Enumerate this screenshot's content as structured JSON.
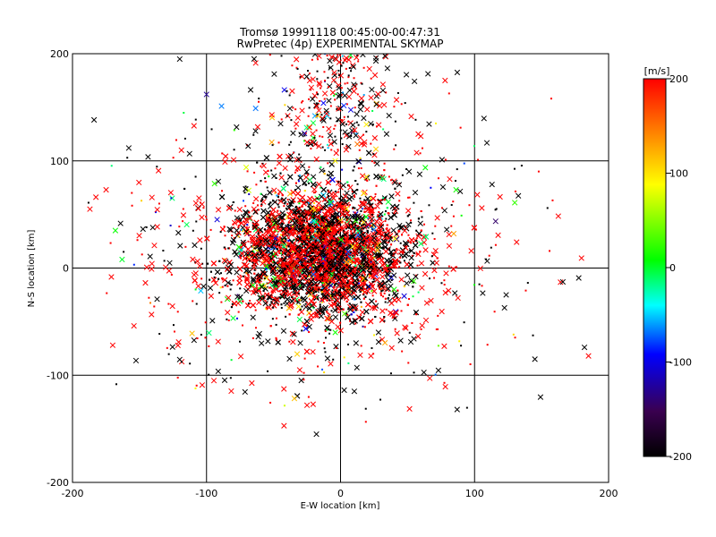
{
  "chart_data": {
    "type": "scatter",
    "title": "Tromsø 19991118 00:45:00-00:47:31",
    "subtitle": "RwPretec (4p) EXPERIMENTAL SKYMAP",
    "xlabel": "E-W location [km]",
    "ylabel": "N-S location [km]",
    "xlim": [
      -200,
      200
    ],
    "ylim": [
      -200,
      200
    ],
    "xticks": [
      "-200",
      "-100",
      "0",
      "100",
      "200"
    ],
    "yticks": [
      "-200",
      "-100",
      "0",
      "100",
      "200"
    ],
    "grid": true,
    "markers": [
      "x",
      "."
    ],
    "cloud": {
      "center": [
        -15,
        15
      ],
      "spread": [
        30,
        28
      ],
      "extent_x": [
        -190,
        185
      ],
      "extent_y": [
        -160,
        200
      ]
    },
    "colorbar": {
      "label": "[m/s]",
      "range": [
        -200,
        200
      ],
      "ticks": [
        "200",
        "100",
        "0",
        "-100",
        "-200"
      ],
      "colormap": [
        "#000000",
        "#3a0050",
        "#0000ff",
        "#00ffff",
        "#00ff00",
        "#ffff00",
        "#ff8000",
        "#ff0000"
      ]
    },
    "highlighted_points": [
      {
        "x": -158,
        "y": 112,
        "v": -200
      },
      {
        "x": -120,
        "y": 195,
        "v": -200
      },
      {
        "x": -100,
        "y": 162,
        "v": -120
      },
      {
        "x": -168,
        "y": 35,
        "v": 30
      },
      {
        "x": -163,
        "y": 8,
        "v": 20
      },
      {
        "x": -170,
        "y": -72,
        "v": 200
      },
      {
        "x": -187,
        "y": 55,
        "v": 200
      },
      {
        "x": 113,
        "y": 78,
        "v": -200
      },
      {
        "x": 130,
        "y": 61,
        "v": 40
      },
      {
        "x": 182,
        "y": -74,
        "v": -200
      },
      {
        "x": 185,
        "y": -82,
        "v": 200
      },
      {
        "x": 145,
        "y": -85,
        "v": -200
      },
      {
        "x": 87,
        "y": -132,
        "v": -200
      },
      {
        "x": -25,
        "y": -128,
        "v": 200
      },
      {
        "x": -18,
        "y": -155,
        "v": -200
      },
      {
        "x": 10,
        "y": 165,
        "v": 200
      },
      {
        "x": 78,
        "y": 175,
        "v": 200
      },
      {
        "x": -4,
        "y": 100,
        "v": 90
      },
      {
        "x": 40,
        "y": -20,
        "v": 30
      },
      {
        "x": 58,
        "y": 125,
        "v": 200
      }
    ]
  }
}
